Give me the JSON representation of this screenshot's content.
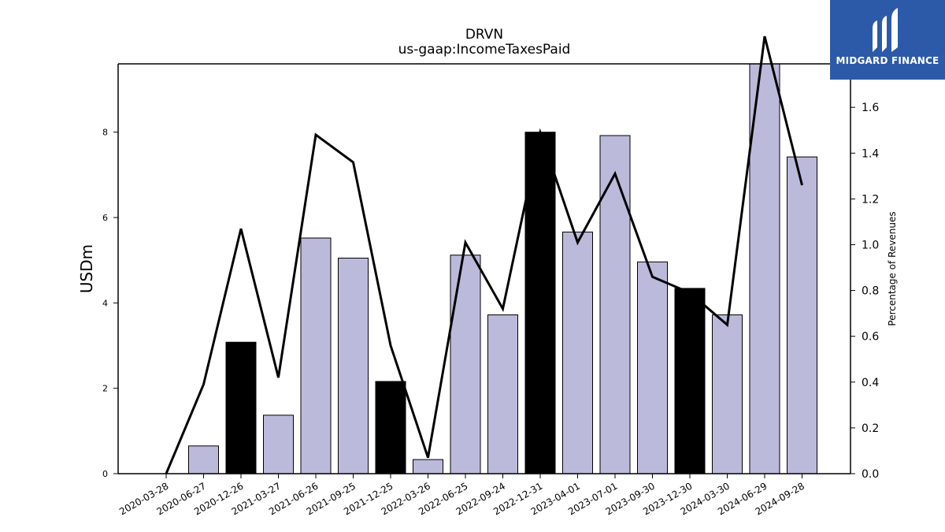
{
  "chart_data": {
    "type": "bar",
    "title": "DRVN",
    "subtitle": "us-gaap:IncomeTaxesPaid",
    "ylabel": "USDm",
    "y2label": "Percentage of Revenues",
    "categories": [
      "2020-03-28",
      "2020-06-27",
      "2020-12-26",
      "2021-03-27",
      "2021-06-26",
      "2021-09-25",
      "2021-12-25",
      "2022-03-26",
      "2022-06-25",
      "2022-09-24",
      "2022-12-31",
      "2023-04-01",
      "2023-07-01",
      "2023-09-30",
      "2023-12-30",
      "2024-03-30",
      "2024-06-29",
      "2024-09-28"
    ],
    "series": [
      {
        "values": [
          0,
          0.65,
          3.08,
          1.37,
          5.52,
          5.05,
          2.16,
          0.33,
          5.12,
          3.72,
          8.0,
          5.66,
          7.92,
          4.96,
          4.34,
          3.72,
          9.64,
          7.42
        ],
        "highlight": [
          false,
          false,
          true,
          false,
          false,
          false,
          true,
          false,
          false,
          false,
          true,
          false,
          false,
          false,
          true,
          false,
          false,
          false
        ],
        "color": "#bcbadb",
        "highlight_color": "#000000",
        "axis": "left"
      },
      {
        "type": "line",
        "values": [
          0.0,
          0.39,
          1.07,
          0.42,
          1.48,
          1.36,
          0.56,
          0.07,
          1.01,
          0.72,
          1.49,
          1.01,
          1.31,
          0.86,
          0.79,
          0.65,
          1.91,
          1.26
        ],
        "color": "#000000",
        "axis": "right"
      }
    ],
    "ylim": [
      0,
      9.6
    ],
    "y2lim": [
      0,
      1.79
    ],
    "yticks": [
      "0",
      "2",
      "4",
      "6",
      "8"
    ],
    "y2ticks": [
      "0.0",
      "0.2",
      "0.4",
      "0.6",
      "0.8",
      "1.0",
      "1.2",
      "1.4",
      "1.6"
    ],
    "grid": false,
    "legend": "none"
  },
  "logo": {
    "text": "MIDGARD FINANCE",
    "background": "#2c5aa8"
  }
}
